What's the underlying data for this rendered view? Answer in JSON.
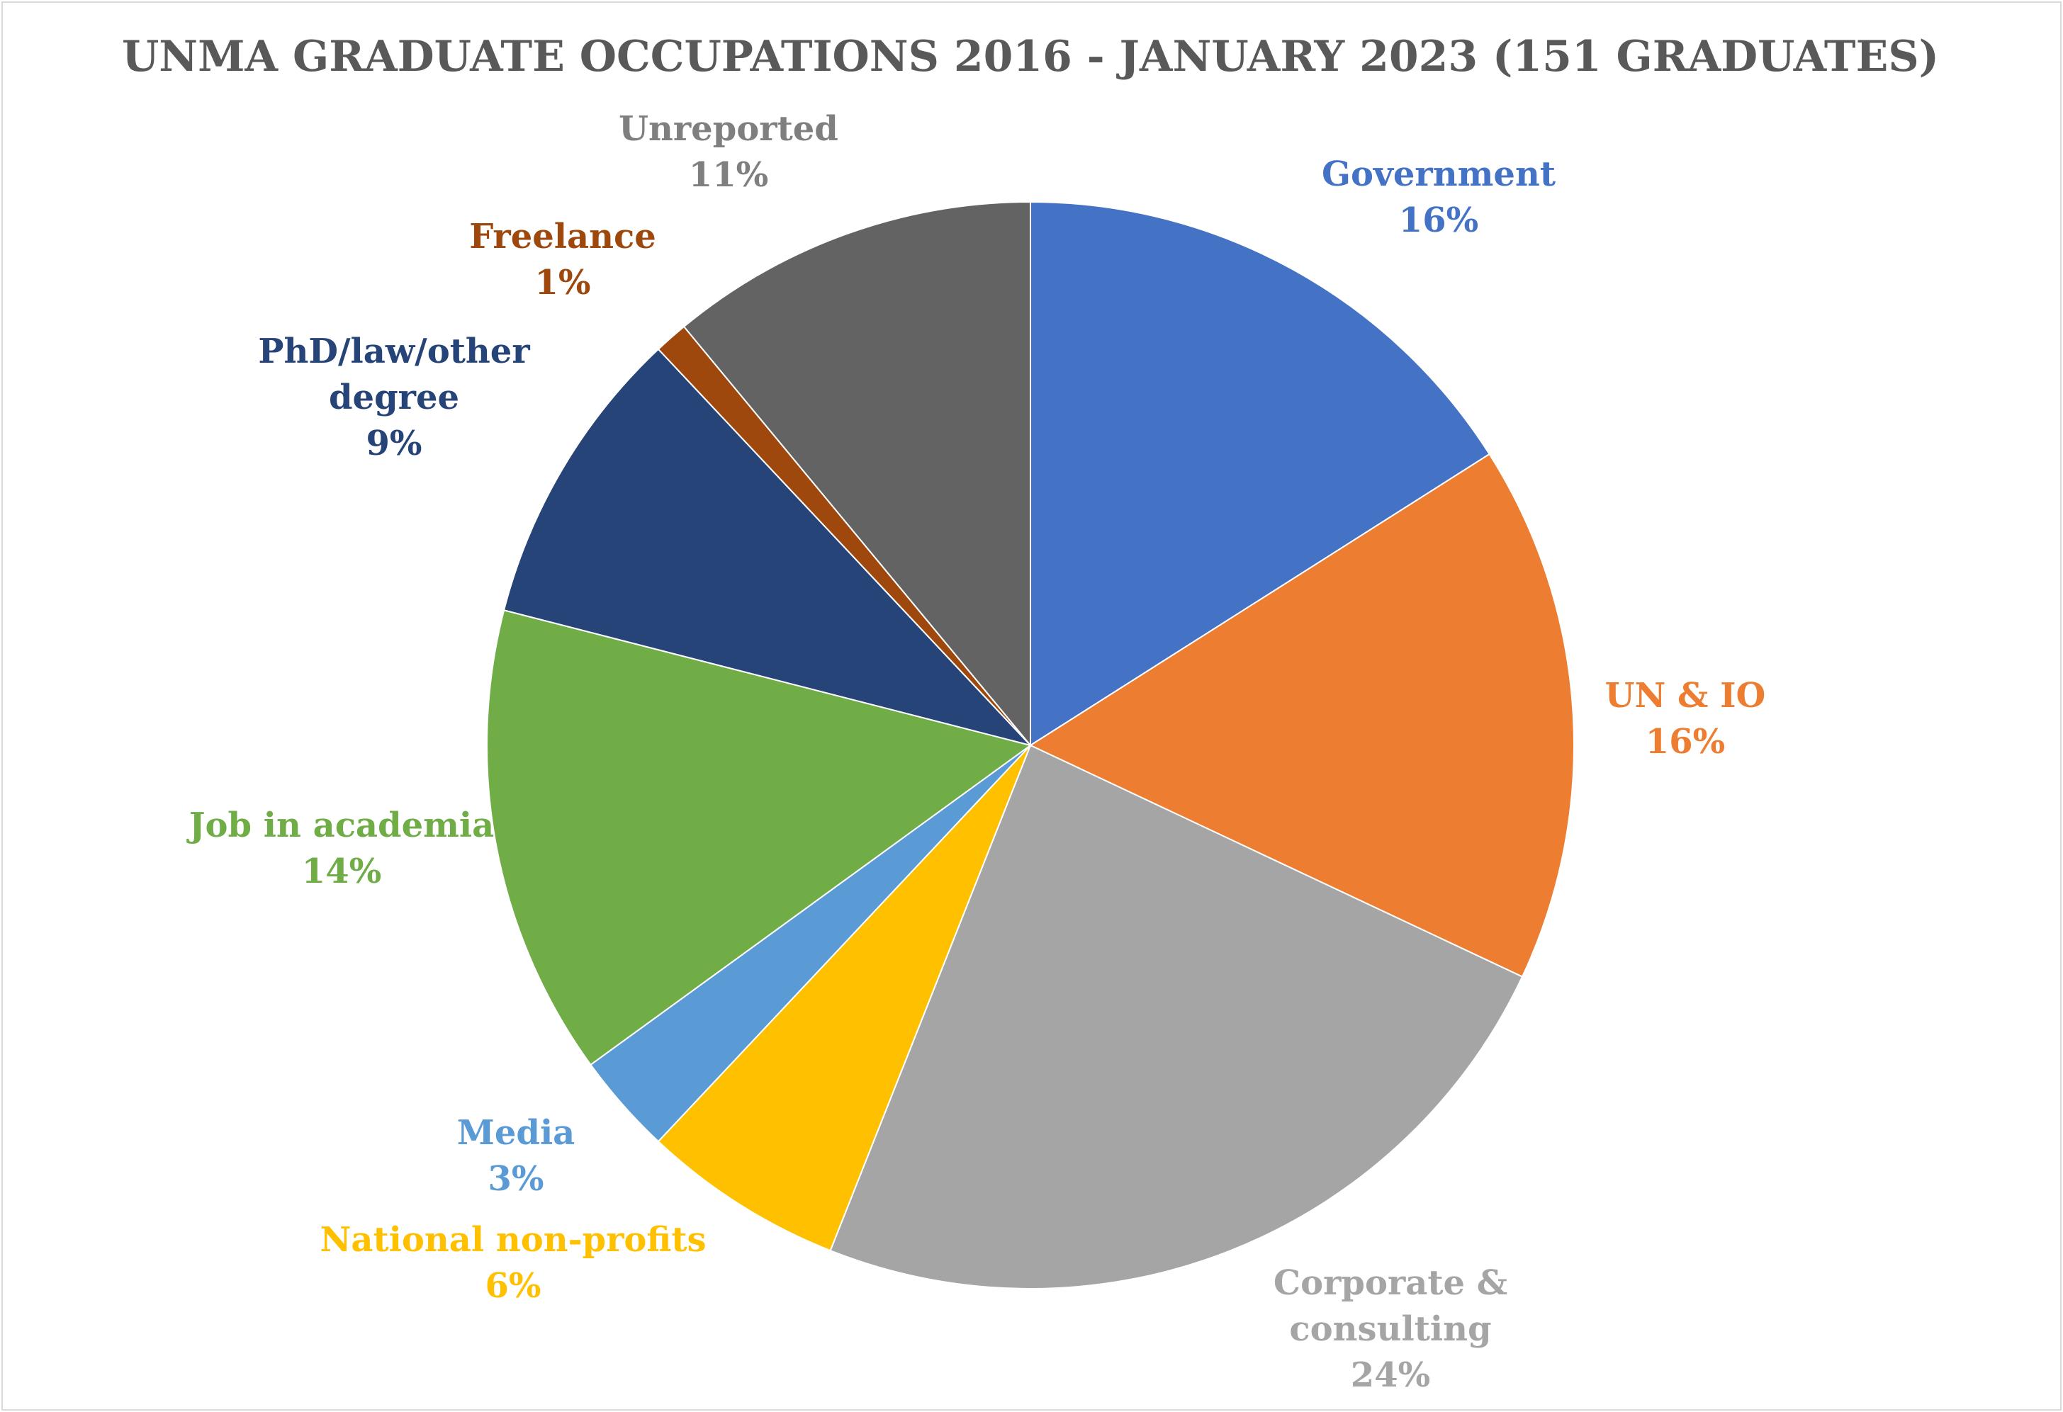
{
  "chart_data": {
    "type": "pie",
    "title": "UNMA GRADUATE OCCUPATIONS 2016 - JANUARY 2023 (151 GRADUATES)",
    "start_angle_deg": 0,
    "direction": "clockwise",
    "slices": [
      {
        "label": "Government",
        "label_lines": [
          "Government"
        ],
        "value": 16,
        "value_label": "16%",
        "color": "#4472C4",
        "label_color": "#4472C4"
      },
      {
        "label": "UN & IO",
        "label_lines": [
          "UN & IO"
        ],
        "value": 16,
        "value_label": "16%",
        "color": "#ED7D31",
        "label_color": "#ED7D31"
      },
      {
        "label": "Corporate & consulting",
        "label_lines": [
          "Corporate &",
          "consulting"
        ],
        "value": 24,
        "value_label": "24%",
        "color": "#A5A5A5",
        "label_color": "#A5A5A5"
      },
      {
        "label": "National non-profits",
        "label_lines": [
          "National non-profits"
        ],
        "value": 6,
        "value_label": "6%",
        "color": "#FFC000",
        "label_color": "#FFC000"
      },
      {
        "label": "Media",
        "label_lines": [
          "Media"
        ],
        "value": 3,
        "value_label": "3%",
        "color": "#5B9BD5",
        "label_color": "#5B9BD5"
      },
      {
        "label": "Job in academia",
        "label_lines": [
          "Job in academia"
        ],
        "value": 14,
        "value_label": "14%",
        "color": "#70AD47",
        "label_color": "#70AD47"
      },
      {
        "label": "PhD/law/other degree",
        "label_lines": [
          "PhD/law/other",
          "degree"
        ],
        "value": 9,
        "value_label": "9%",
        "color": "#264478",
        "label_color": "#264478"
      },
      {
        "label": "Freelance",
        "label_lines": [
          "Freelance"
        ],
        "value": 1,
        "value_label": "1%",
        "color": "#9E480E",
        "label_color": "#9E480E"
      },
      {
        "label": "Unreported",
        "label_lines": [
          "Unreported"
        ],
        "value": 11,
        "value_label": "11%",
        "color": "#636363",
        "label_color": "#7F7F7F"
      }
    ]
  }
}
